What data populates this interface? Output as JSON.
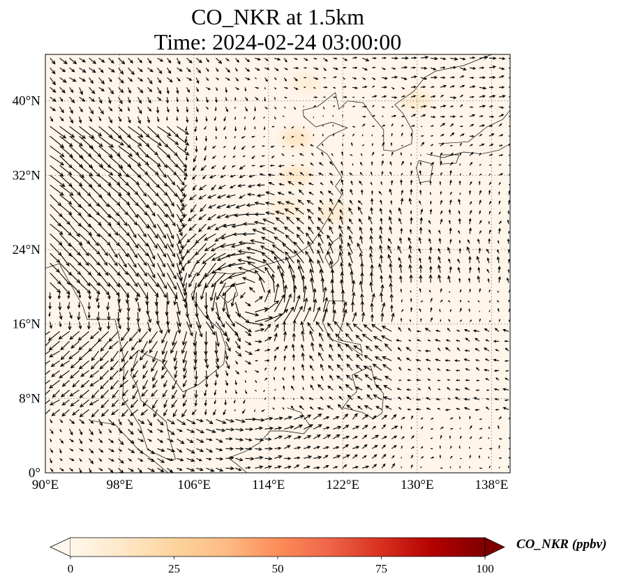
{
  "title": {
    "line1": "CO_NKR at 1.5km",
    "line2": "Time: 2024-02-24 03:00:00"
  },
  "map": {
    "extent": {
      "lon": [
        90,
        140
      ],
      "lat": [
        0,
        45
      ]
    },
    "x_ticks": [
      {
        "value": 90,
        "label": "90°E"
      },
      {
        "value": 98,
        "label": "98°E"
      },
      {
        "value": 106,
        "label": "106°E"
      },
      {
        "value": 114,
        "label": "114°E"
      },
      {
        "value": 122,
        "label": "122°E"
      },
      {
        "value": 130,
        "label": "130°E"
      },
      {
        "value": 138,
        "label": "138°E"
      }
    ],
    "y_ticks": [
      {
        "value": 0,
        "label": "0°"
      },
      {
        "value": 8,
        "label": "8°N"
      },
      {
        "value": 16,
        "label": "16°N"
      },
      {
        "value": 24,
        "label": "24°N"
      },
      {
        "value": 32,
        "label": "32°N"
      },
      {
        "value": 40,
        "label": "40°N"
      }
    ],
    "gridlines": "dotted gray",
    "background_color": "#fff5eb",
    "coastline_color": "#000000",
    "vector_color": "#000000",
    "field_maxima_ppbv": [
      {
        "lon": 130,
        "lat": 40,
        "value": 12
      },
      {
        "lon": 117,
        "lat": 36,
        "value": 15
      },
      {
        "lon": 117,
        "lat": 32,
        "value": 14
      },
      {
        "lon": 116,
        "lat": 28.5,
        "value": 10
      },
      {
        "lon": 121,
        "lat": 28,
        "value": 12
      },
      {
        "lon": 118,
        "lat": 42,
        "value": 8
      }
    ]
  },
  "colorbar": {
    "label": "CO_NKR (ppbv)",
    "min": 0,
    "max": 100,
    "ticks": [
      "0",
      "25",
      "50",
      "75",
      "100"
    ],
    "extend": "both",
    "colormap": "OrRd",
    "stops": [
      "#fff7ec",
      "#fee8c8",
      "#fdd49e",
      "#fdbb84",
      "#fc8d59",
      "#ef6548",
      "#d7301f",
      "#b30000",
      "#7f0000"
    ]
  }
}
